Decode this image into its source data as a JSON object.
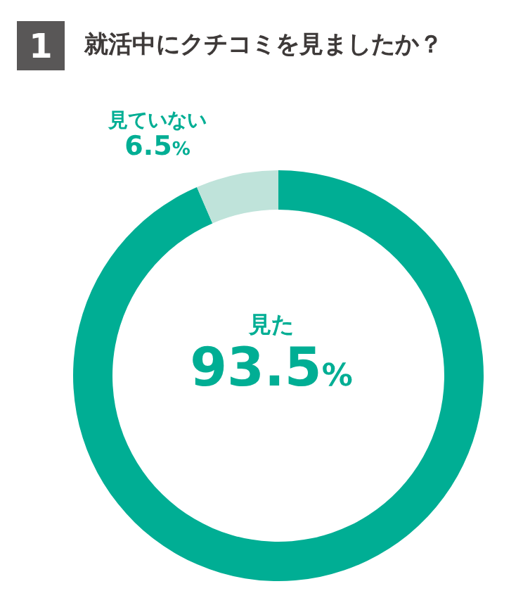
{
  "chart_data": {
    "type": "donut",
    "title": "就活中にクチコミを見ましたか？",
    "annotations": [
      "1"
    ],
    "categories": [
      "見た",
      "見ていない"
    ],
    "values": [
      93.5,
      6.5
    ],
    "colors": [
      "#00ae94",
      "#bfe3da"
    ],
    "value_labels": [
      "93.5%",
      "6.5%"
    ]
  }
}
